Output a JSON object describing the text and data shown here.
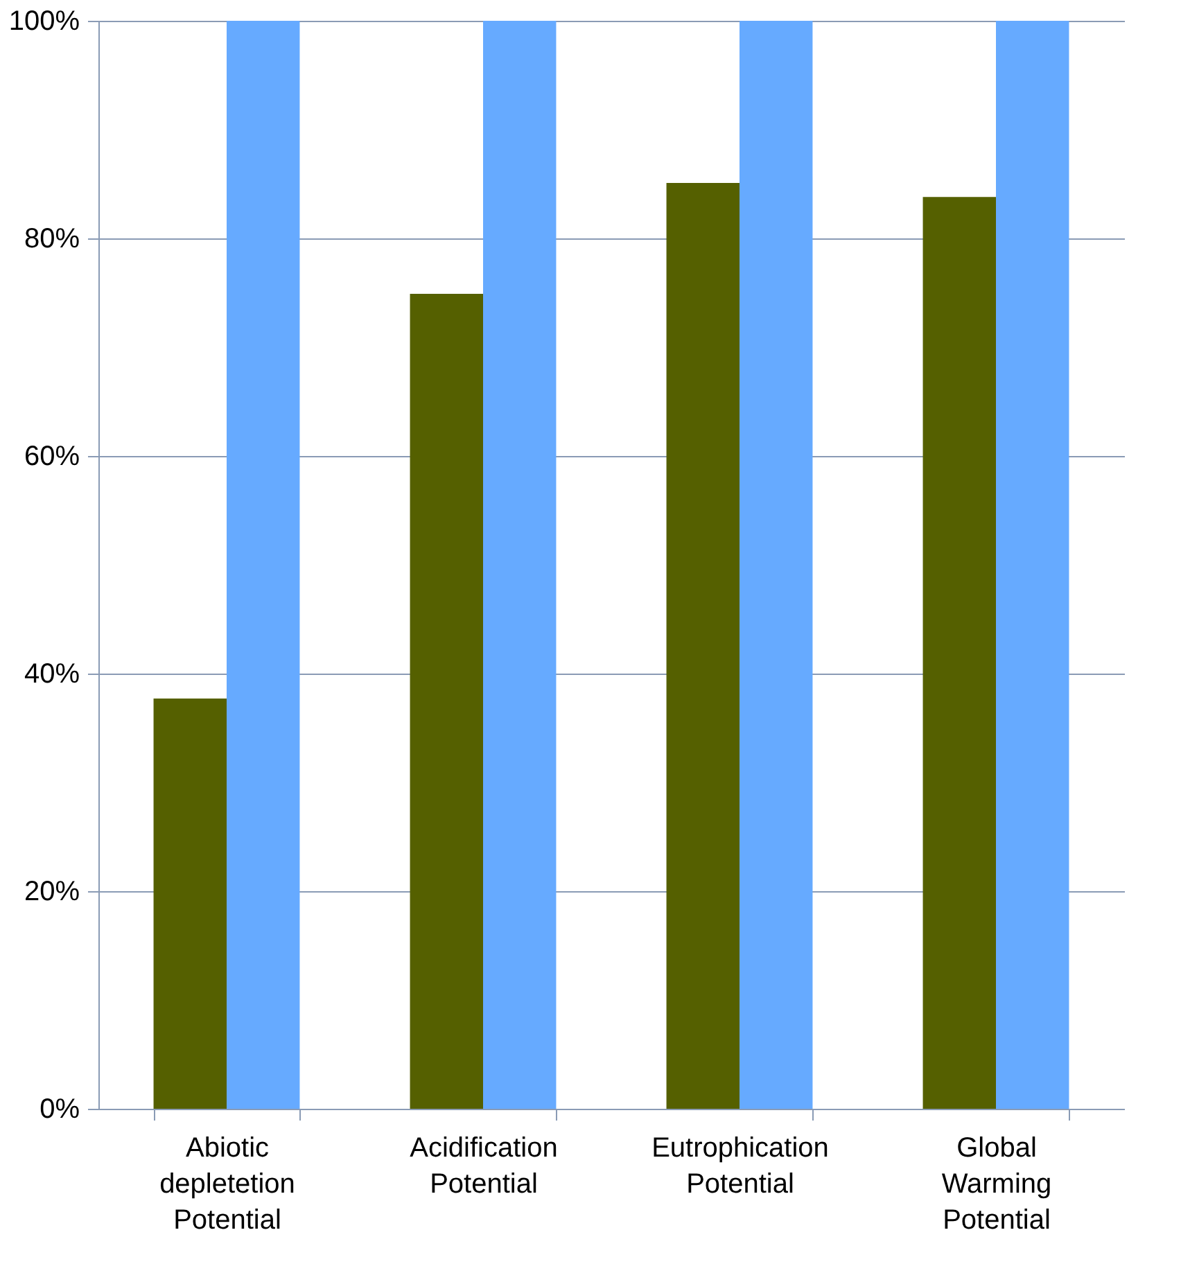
{
  "chart_data": {
    "type": "bar",
    "categories": [
      "Abiotic depletetion Potential",
      "Acidification Potential",
      "Eutrophication Potential",
      "Global Warming Potential"
    ],
    "series": [
      {
        "color": "#556000",
        "values": [
          37.7,
          74.9,
          85.1,
          83.8
        ]
      },
      {
        "color": "#66aaff",
        "values": [
          100,
          100,
          100,
          100
        ]
      }
    ],
    "ylim": [
      0,
      100
    ],
    "yticks": [
      {
        "value": 0,
        "label": "0%"
      },
      {
        "value": 20,
        "label": "20%"
      },
      {
        "value": 40,
        "label": "40%"
      },
      {
        "value": 60,
        "label": "60%"
      },
      {
        "value": 80,
        "label": "80%"
      },
      {
        "value": 100,
        "label": "100%"
      }
    ],
    "grid": "y",
    "legend": false
  }
}
